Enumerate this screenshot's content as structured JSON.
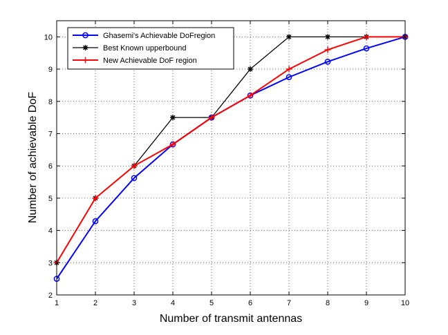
{
  "chart_data": {
    "type": "line",
    "title": "",
    "xlabel": "Number of transmit antennas",
    "ylabel": "Number of achievable DoF",
    "xlim": [
      1,
      10
    ],
    "ylim": [
      2,
      10.5
    ],
    "x_ticks": [
      "1",
      "2",
      "3",
      "4",
      "5",
      "6",
      "7",
      "8",
      "9",
      "10"
    ],
    "y_ticks": [
      "2",
      "3",
      "4",
      "5",
      "6",
      "7",
      "8",
      "9",
      "10"
    ],
    "grid": true,
    "grid_style": "dotted",
    "legend_position": "top-left",
    "x": [
      1,
      2,
      3,
      4,
      5,
      6,
      7,
      8,
      9,
      10
    ],
    "series": [
      {
        "name": "Ghasemi's Achievable DoFregion",
        "color": "#0000ff",
        "marker": "circle",
        "values": [
          2.5,
          4.286,
          5.625,
          6.667,
          7.5,
          8.182,
          8.75,
          9.231,
          9.643,
          10
        ]
      },
      {
        "name": "Best Known upperbound",
        "color": "#000000",
        "marker": "star",
        "values": [
          3,
          5,
          6,
          7.5,
          7.5,
          9,
          10,
          10,
          10,
          10
        ]
      },
      {
        "name": "New Achievable DoF region",
        "color": "#ff0000",
        "marker": "plus",
        "values": [
          3,
          5,
          6,
          6.667,
          7.5,
          8.182,
          9,
          9.6,
          10,
          10
        ]
      }
    ]
  }
}
